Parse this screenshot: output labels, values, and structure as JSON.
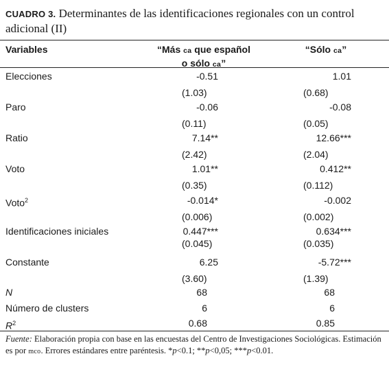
{
  "table": {
    "label": "CUADRO 3.",
    "title": "Determinantes de las identificaciones regionales con un control adicional (II)",
    "headers": {
      "variables": "Variables",
      "col1_line1": "“Más ",
      "col1_sc": "ca",
      "col1_line1_end": " que español",
      "col1_line2": "o sólo ",
      "col1_line2_sc": "ca",
      "col1_line2_end": "”",
      "col2_start": "“Sólo ",
      "col2_sc": "ca",
      "col2_end": "”"
    },
    "rows": [
      {
        "label": "Elecciones",
        "c1": "-0.51",
        "c2": "1.01",
        "se1": "(1.03)",
        "se2": "(0.68)"
      },
      {
        "label": "Paro",
        "c1": "-0.06",
        "c2": "-0.08",
        "se1": "(0.11)",
        "se2": "(0.05)"
      },
      {
        "label": "Ratio",
        "c1": "7.14**",
        "c2": "12.66***",
        "se1": "(2.42)",
        "se2": "(2.04)"
      },
      {
        "label": "Voto",
        "c1": "1.01**",
        "c2": "0.412**",
        "se1": "(0.35)",
        "se2": "(0.112)"
      },
      {
        "label": "Voto",
        "sup": "2",
        "c1": "-0.014*",
        "c2": "-0.002",
        "se1": "(0.006)",
        "se2": "(0.002)"
      },
      {
        "label": "Identificaciones iniciales",
        "c1": "0.447***",
        "c2": "0.634***",
        "se1": "(0.045)",
        "se2": "(0.035)"
      },
      {
        "label": "Constante",
        "c1": "6.25",
        "c2": "-5.72***",
        "se1": "(3.60)",
        "se2": "(1.39)"
      }
    ],
    "stats": [
      {
        "label": "N",
        "c1": "68",
        "c2": "68"
      },
      {
        "label": "Número de clusters",
        "c1": "6",
        "c2": "6"
      },
      {
        "label": "R",
        "sup": "2",
        "c1": "0.68",
        "c2": "0.85"
      }
    ],
    "note": {
      "source_label": "Fuente:",
      "text_1": " Elaboración propia con base en las encuestas del Centro de Investigaciones Sociológicas. Estimación es por ",
      "text_sc": "mco",
      "text_2": ". Errores estándares entre paréntesis. *",
      "p1": "p",
      "t1": "<0.1; **",
      "p2": "p",
      "t2": "<0,05; ***",
      "p3": "p",
      "t3": "<0.01."
    }
  }
}
